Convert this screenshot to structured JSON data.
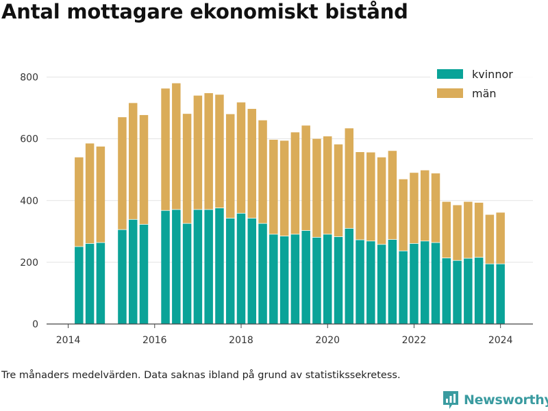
{
  "title": "Antal mottagare ekonomiskt bistånd",
  "note": "Tre månaders medelvärden. Data saknas ibland på grund av statistikssekretess.",
  "brand": "Newsworthy",
  "colors": {
    "kvinnor": "#0aa398",
    "man": "#daac59",
    "grid": "#e3e3e3",
    "axis": "#444444"
  },
  "chart_data": {
    "type": "bar",
    "stacked": true,
    "x_unit": "quarter",
    "xlim": [
      2013.5,
      2024.75
    ],
    "xticks": [
      2014,
      2016,
      2018,
      2020,
      2022,
      2024
    ],
    "ylim": [
      0,
      850
    ],
    "yticks": [
      0,
      200,
      400,
      600,
      800
    ],
    "grid": true,
    "legend_position": "top-right",
    "series": [
      {
        "name": "kvinnor",
        "color": "#0aa398",
        "points": [
          {
            "x": 2014.25,
            "y": 250
          },
          {
            "x": 2014.5,
            "y": 260
          },
          {
            "x": 2014.75,
            "y": 263
          },
          {
            "x": 2015.25,
            "y": 305
          },
          {
            "x": 2015.5,
            "y": 338
          },
          {
            "x": 2015.75,
            "y": 322
          },
          {
            "x": 2016.25,
            "y": 367
          },
          {
            "x": 2016.5,
            "y": 370
          },
          {
            "x": 2016.75,
            "y": 325
          },
          {
            "x": 2017.0,
            "y": 370
          },
          {
            "x": 2017.25,
            "y": 370
          },
          {
            "x": 2017.5,
            "y": 375
          },
          {
            "x": 2017.75,
            "y": 342
          },
          {
            "x": 2018.0,
            "y": 358
          },
          {
            "x": 2018.25,
            "y": 342
          },
          {
            "x": 2018.5,
            "y": 325
          },
          {
            "x": 2018.75,
            "y": 290
          },
          {
            "x": 2019.0,
            "y": 284
          },
          {
            "x": 2019.25,
            "y": 290
          },
          {
            "x": 2019.5,
            "y": 302
          },
          {
            "x": 2019.75,
            "y": 280
          },
          {
            "x": 2020.0,
            "y": 290
          },
          {
            "x": 2020.25,
            "y": 282
          },
          {
            "x": 2020.5,
            "y": 309
          },
          {
            "x": 2020.75,
            "y": 272
          },
          {
            "x": 2021.0,
            "y": 268
          },
          {
            "x": 2021.25,
            "y": 257
          },
          {
            "x": 2021.5,
            "y": 273
          },
          {
            "x": 2021.75,
            "y": 236
          },
          {
            "x": 2022.0,
            "y": 260
          },
          {
            "x": 2022.25,
            "y": 268
          },
          {
            "x": 2022.5,
            "y": 263
          },
          {
            "x": 2022.75,
            "y": 213
          },
          {
            "x": 2023.0,
            "y": 205
          },
          {
            "x": 2023.25,
            "y": 212
          },
          {
            "x": 2023.5,
            "y": 215
          },
          {
            "x": 2023.75,
            "y": 194
          },
          {
            "x": 2024.0,
            "y": 194
          }
        ]
      },
      {
        "name": "män",
        "color": "#daac59",
        "points": [
          {
            "x": 2014.25,
            "y": 290
          },
          {
            "x": 2014.5,
            "y": 325
          },
          {
            "x": 2014.75,
            "y": 312
          },
          {
            "x": 2015.25,
            "y": 365
          },
          {
            "x": 2015.5,
            "y": 378
          },
          {
            "x": 2015.75,
            "y": 355
          },
          {
            "x": 2016.25,
            "y": 396
          },
          {
            "x": 2016.5,
            "y": 410
          },
          {
            "x": 2016.75,
            "y": 356
          },
          {
            "x": 2017.0,
            "y": 370
          },
          {
            "x": 2017.25,
            "y": 378
          },
          {
            "x": 2017.5,
            "y": 368
          },
          {
            "x": 2017.75,
            "y": 338
          },
          {
            "x": 2018.0,
            "y": 360
          },
          {
            "x": 2018.25,
            "y": 355
          },
          {
            "x": 2018.5,
            "y": 335
          },
          {
            "x": 2018.75,
            "y": 307
          },
          {
            "x": 2019.0,
            "y": 310
          },
          {
            "x": 2019.25,
            "y": 331
          },
          {
            "x": 2019.5,
            "y": 341
          },
          {
            "x": 2019.75,
            "y": 320
          },
          {
            "x": 2020.0,
            "y": 318
          },
          {
            "x": 2020.25,
            "y": 300
          },
          {
            "x": 2020.5,
            "y": 325
          },
          {
            "x": 2020.75,
            "y": 285
          },
          {
            "x": 2021.0,
            "y": 288
          },
          {
            "x": 2021.25,
            "y": 283
          },
          {
            "x": 2021.5,
            "y": 288
          },
          {
            "x": 2021.75,
            "y": 233
          },
          {
            "x": 2022.0,
            "y": 230
          },
          {
            "x": 2022.25,
            "y": 230
          },
          {
            "x": 2022.5,
            "y": 225
          },
          {
            "x": 2022.75,
            "y": 183
          },
          {
            "x": 2023.0,
            "y": 180
          },
          {
            "x": 2023.25,
            "y": 184
          },
          {
            "x": 2023.5,
            "y": 178
          },
          {
            "x": 2023.75,
            "y": 160
          },
          {
            "x": 2024.0,
            "y": 167
          }
        ]
      }
    ]
  }
}
